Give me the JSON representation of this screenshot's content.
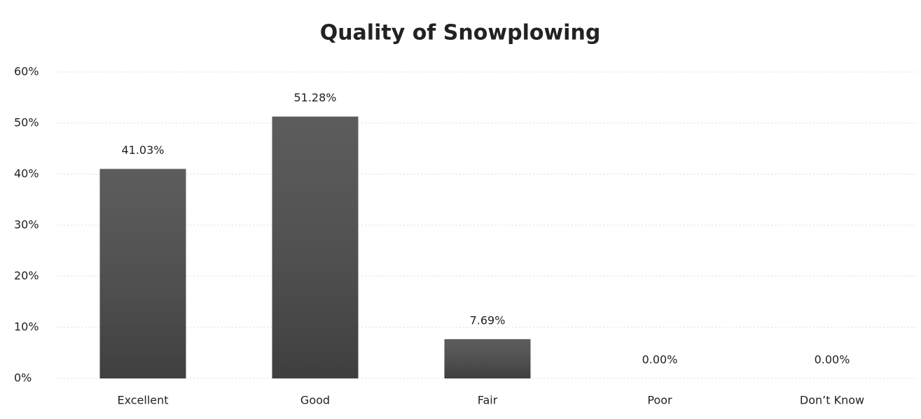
{
  "chart_data": {
    "type": "bar",
    "title": "Quality of Snowplowing",
    "categories": [
      "Excellent",
      "Good",
      "Fair",
      "Poor",
      "Don’t Know"
    ],
    "values": [
      41.03,
      51.28,
      7.69,
      0,
      0
    ],
    "value_labels": [
      "41.03%",
      "51.28%",
      "7.69%",
      "0.00%",
      "0.00%"
    ],
    "color": "#4a4a4a",
    "ylim": [
      0,
      60
    ],
    "yticks": [
      {
        "value": 0,
        "label": "0%"
      },
      {
        "value": 10,
        "label": "10%"
      },
      {
        "value": 20,
        "label": "20%"
      },
      {
        "value": 30,
        "label": "30%"
      },
      {
        "value": 40,
        "label": "40%"
      },
      {
        "value": 50,
        "label": "50%"
      },
      {
        "value": 60,
        "label": "60%"
      }
    ],
    "grid": true
  }
}
